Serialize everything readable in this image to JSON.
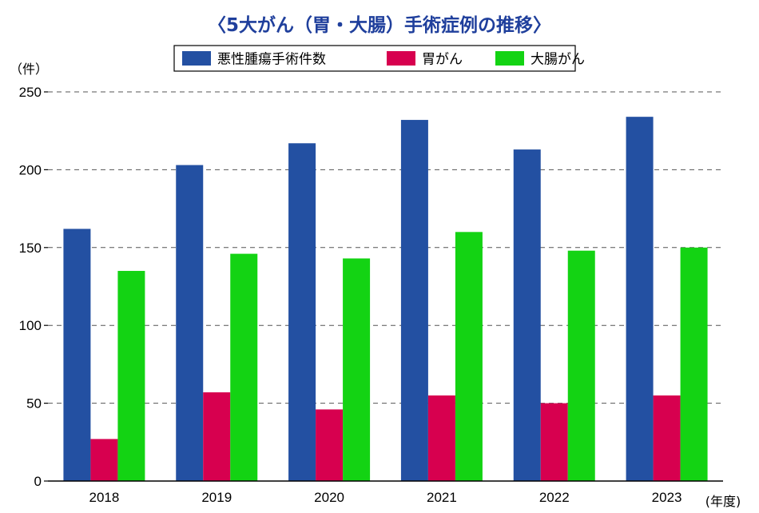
{
  "title": "〈5大がん（胃・大腸）手術症例の推移〉",
  "colors": {
    "title": "#1f3f9c",
    "grid": "#555555",
    "axis": "#000000"
  },
  "chart_data": {
    "type": "bar",
    "title": "〈5大がん（胃・大腸）手術症例の推移〉",
    "categories": [
      "2018",
      "2019",
      "2020",
      "2021",
      "2022",
      "2023"
    ],
    "series": [
      {
        "name": "悪性腫瘍手術件数",
        "color": "#2350a2",
        "values": [
          162,
          203,
          217,
          232,
          213,
          234
        ]
      },
      {
        "name": "胃がん",
        "color": "#d7004f",
        "values": [
          27,
          57,
          46,
          55,
          50,
          55
        ]
      },
      {
        "name": "大腸がん",
        "color": "#13d313",
        "values": [
          135,
          146,
          143,
          160,
          148,
          150
        ]
      }
    ],
    "ylabel": "（件）",
    "xlabel": "(年度)",
    "ylim": [
      0,
      250
    ],
    "yticks": [
      0,
      50,
      100,
      150,
      200,
      250
    ],
    "grid": true,
    "grid_style": "dashed",
    "legend_position": "top"
  }
}
